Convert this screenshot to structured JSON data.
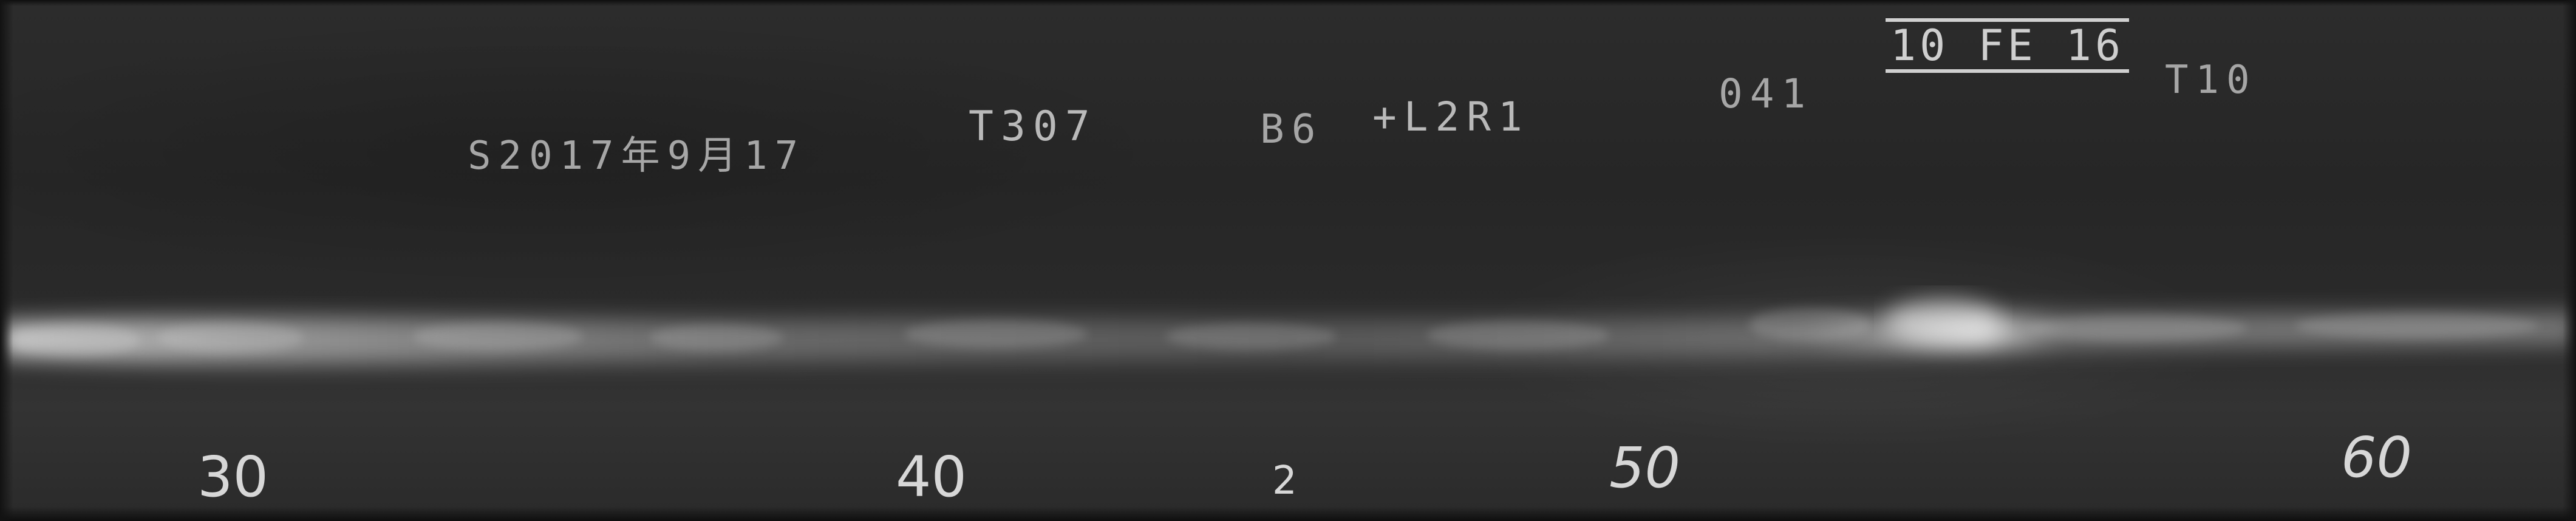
{
  "header_markings": {
    "date_code": "S2017年9月17",
    "weld_no": "T307",
    "plate_code": "B6",
    "position_code": "+L2R1",
    "film_no": "041",
    "boxed_tag": "10 FE 16",
    "thickness_code": "T10"
  },
  "scale_markers": [
    "30",
    "40",
    "2",
    "50",
    "60"
  ],
  "colors": {
    "film_base": "#262626",
    "weld_bead": "#bdbdbd",
    "stamp_text": "#b9b9b9",
    "scale_text": "#d7d7d7"
  }
}
